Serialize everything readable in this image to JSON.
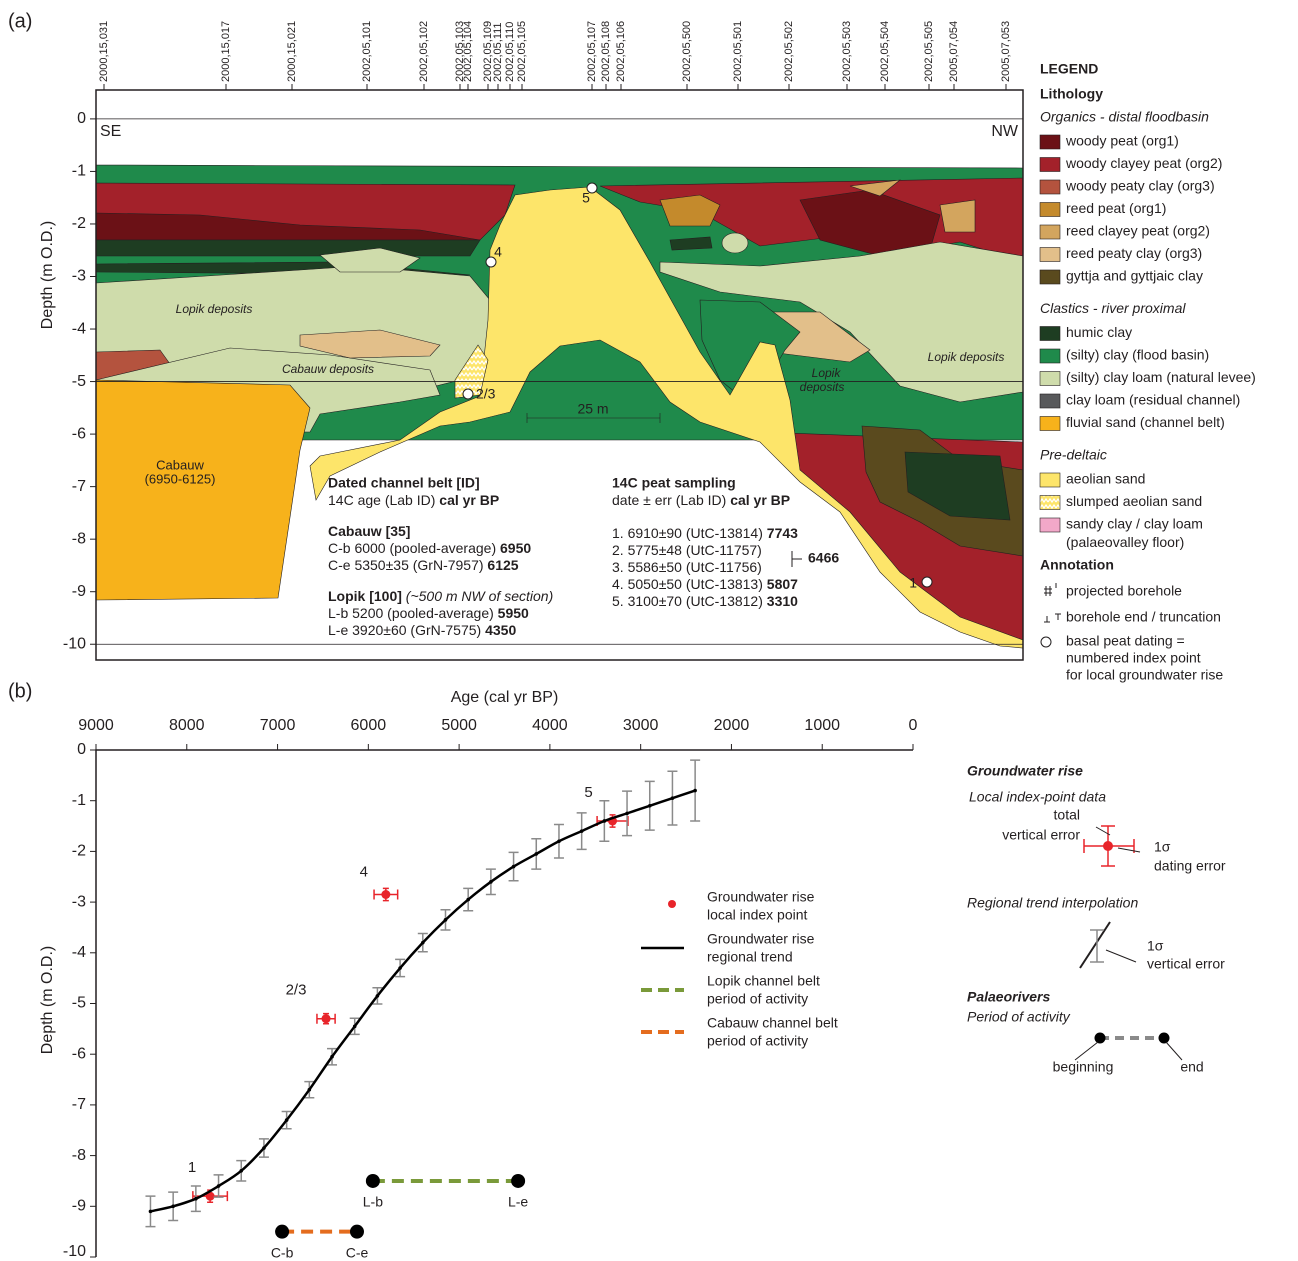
{
  "chart_data": [
    {
      "type": "section",
      "panel": "(a)",
      "ylabel": "Depth (m O.D.)",
      "ylim": [
        -10.3,
        0.55
      ],
      "yticks": [
        0,
        -1,
        -2,
        -3,
        -4,
        -5,
        -6,
        -7,
        -8,
        -9,
        -10
      ],
      "boreholes": [
        "2000,15,031",
        "2000,15,017",
        "2000,15,021",
        "2002,05,101",
        "2002,05,102",
        "2002,05,103",
        "2002,05,104",
        "2002,05,109",
        "2002,05,111",
        "2002,05,110",
        "2002,05,105",
        "2002,05,107",
        "2002,05,108",
        "2002,05,106",
        "2002,05,500",
        "2002,05,501",
        "2002,05,502",
        "2002,05,503",
        "2002,05,504",
        "2002,05,505",
        "2005,07,054",
        "2005,07,053"
      ],
      "ends": [
        "SE",
        "NW"
      ],
      "unit_labels": [
        "Lopik deposits",
        "Cabauw deposits",
        "Lopik deposits",
        "Lopik",
        "deposits",
        "Cabauw",
        "(6950-6125)"
      ],
      "scale_bar": "25 m",
      "point_labels": [
        "5",
        "4",
        "2/3",
        "1"
      ],
      "dated_channel_belt": {
        "title": "Dated channel belt [ID]",
        "subtitle": [
          "14C age (Lab ID)",
          " cal yr BP"
        ],
        "groups": [
          {
            "name": "Cabauw [35]",
            "note": "",
            "rows": [
              [
                "C-b 6000 (pooled-average) ",
                "6950"
              ],
              [
                "C-e 5350±35 (GrN-7957) ",
                "6125"
              ]
            ]
          },
          {
            "name": "Lopik [100]",
            "note": " (~500 m NW of section)",
            "rows": [
              [
                "L-b 5200 (pooled-average) ",
                "5950"
              ],
              [
                "L-e 3920±60 (GrN-7575) ",
                "4350"
              ]
            ]
          }
        ]
      },
      "peat_sampling": {
        "title": "14C peat sampling",
        "subtitle": [
          "date ± err (Lab ID) ",
          "cal yr BP"
        ],
        "rows": [
          [
            "1. 6910±90 (UtC-13814) ",
            "7743"
          ],
          [
            "2. 5775±48 (UtC-11757)",
            ""
          ],
          [
            "3. 5586±50 (UtC-11756)",
            ""
          ],
          [
            "4. 5050±50 (UtC-13813) ",
            "5807"
          ],
          [
            "5. 3100±70 (UtC-13812) ",
            "3310"
          ]
        ],
        "combined": "6466"
      },
      "legend": {
        "title": "LEGEND",
        "heading": "Lithology",
        "groups": [
          {
            "name": "Organics - distal floodbasin",
            "items": [
              {
                "label": "woody peat (org1)",
                "color": "#6b1116"
              },
              {
                "label": "woody clayey peat (org2)",
                "color": "#a3212a"
              },
              {
                "label": "woody peaty clay (org3)",
                "color": "#b4533e"
              },
              {
                "label": "reed peat (org1)",
                "color": "#c48a2c"
              },
              {
                "label": "reed clayey peat (org2)",
                "color": "#d3a55e"
              },
              {
                "label": "reed peaty clay (org3)",
                "color": "#e2bf8a"
              },
              {
                "label": "gyttja and gyttjaic clay",
                "color": "#5a4a1e"
              }
            ]
          },
          {
            "name": "Clastics - river proximal",
            "items": [
              {
                "label": "humic clay",
                "color": "#1e3d22"
              },
              {
                "label": "(silty) clay (flood basin)",
                "color": "#1f8a4b"
              },
              {
                "label": "(silty) clay loam (natural levee)",
                "color": "#cfdcab"
              },
              {
                "label": "clay loam (residual channel)",
                "color": "#58595b"
              },
              {
                "label": "fluvial sand (channel belt)",
                "color": "#f7b21b"
              }
            ]
          },
          {
            "name": "Pre-deltaic",
            "items": [
              {
                "label": "aeolian sand",
                "color": "#fde56a"
              },
              {
                "label": "slumped aeolian sand",
                "color": "#fbe98e"
              },
              {
                "label": "sandy clay / clay loam",
                "color": "#f2a8c9"
              }
            ],
            "note": "(palaeovalley floor)"
          }
        ],
        "annotation": "Annotation",
        "annotations": [
          "projected borehole",
          "borehole end / truncation",
          "basal peat dating =",
          "numbered index point",
          "for local groundwater rise"
        ]
      }
    },
    {
      "type": "line",
      "panel": "(b)",
      "xlabel": "Age (cal yr BP)",
      "ylabel": "Depth (m O.D.)",
      "xlim": [
        9000,
        0
      ],
      "xticks": [
        9000,
        8000,
        7000,
        6000,
        5000,
        4000,
        3000,
        2000,
        1000,
        0
      ],
      "ylim": [
        -10,
        0
      ],
      "yticks": [
        0,
        -1,
        -2,
        -3,
        -4,
        -5,
        -6,
        -7,
        -8,
        -9,
        -10
      ],
      "series": [
        {
          "name": [
            "Groundwater rise",
            "local index point"
          ],
          "color": "#e8242a",
          "style": "points",
          "x": [
            7743,
            6466,
            5807,
            3310
          ],
          "values": [
            -8.8,
            -5.3,
            -2.85,
            -1.4
          ],
          "xerr": [
            190,
            100,
            130,
            170
          ],
          "yerr": [
            0.12,
            0.1,
            0.12,
            0.12
          ],
          "point_labels": [
            "1",
            "2/3",
            "4",
            "5"
          ]
        },
        {
          "name": [
            "Groundwater rise",
            "regional trend"
          ],
          "color": "#000000",
          "style": "trend",
          "x": [
            8400,
            8150,
            7900,
            7650,
            7400,
            7150,
            6900,
            6650,
            6400,
            6150,
            5900,
            5650,
            5400,
            5150,
            4900,
            4650,
            4400,
            4150,
            3900,
            3650,
            3400,
            3150,
            2900,
            2650,
            2400
          ],
          "values": [
            -9.1,
            -9.0,
            -8.85,
            -8.6,
            -8.3,
            -7.85,
            -7.3,
            -6.7,
            -6.05,
            -5.45,
            -4.85,
            -4.3,
            -3.8,
            -3.35,
            -2.95,
            -2.6,
            -2.3,
            -2.05,
            -1.8,
            -1.6,
            -1.4,
            -1.25,
            -1.1,
            -0.95,
            -0.8
          ],
          "yerr": [
            0.3,
            0.28,
            0.25,
            0.22,
            0.2,
            0.18,
            0.17,
            0.16,
            0.16,
            0.16,
            0.16,
            0.17,
            0.18,
            0.2,
            0.22,
            0.25,
            0.28,
            0.3,
            0.33,
            0.36,
            0.4,
            0.44,
            0.48,
            0.53,
            0.6
          ]
        },
        {
          "name": [
            "Lopik channel belt",
            "period of activity"
          ],
          "color": "#7a9a3a",
          "style": "period",
          "x": [
            5950,
            4350
          ],
          "values": [
            -8.5,
            -8.5
          ],
          "point_labels": [
            "L-b",
            "L-e"
          ]
        },
        {
          "name": [
            "Cabauw channel belt",
            "period of activity"
          ],
          "color": "#e46c1e",
          "style": "period",
          "x": [
            6950,
            6125
          ],
          "values": [
            -9.5,
            -9.5
          ],
          "point_labels": [
            "C-b",
            "C-e"
          ]
        }
      ],
      "explanation": {
        "title": "Groundwater rise",
        "index": "Local index-point data",
        "total": [
          "total",
          "vertical error"
        ],
        "dating": [
          "1σ",
          "dating error"
        ],
        "trend": "Regional trend interpolation",
        "trend_err": [
          "1σ",
          "vertical error"
        ],
        "rivers": "Palaeorivers",
        "period": "Period of activity",
        "ends": [
          "beginning",
          "end"
        ]
      }
    }
  ]
}
